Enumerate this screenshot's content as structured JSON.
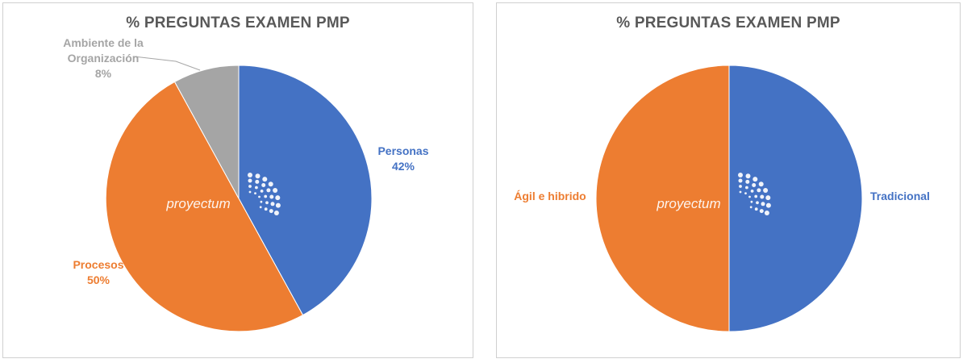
{
  "chart_data": [
    {
      "type": "pie",
      "title": "% PREGUNTAS EXAMEN PMP",
      "watermark": "proyectum",
      "slices": [
        {
          "label_lines": [
            "Personas"
          ],
          "value_label": "42%",
          "value": 42,
          "color": "#4472C4"
        },
        {
          "label_lines": [
            "Procesos"
          ],
          "value_label": "50%",
          "value": 50,
          "color": "#ED7D31"
        },
        {
          "label_lines": [
            "Ambiente de la",
            "Organización"
          ],
          "value_label": "8%",
          "value": 8,
          "color": "#A5A5A5"
        }
      ]
    },
    {
      "type": "pie",
      "title": "% PREGUNTAS EXAMEN PMP",
      "watermark": "proyectum",
      "slices": [
        {
          "label_lines": [
            "Tradicional"
          ],
          "value_label": "",
          "value": 50,
          "color": "#4472C4"
        },
        {
          "label_lines": [
            "Ágil e hibrido"
          ],
          "value_label": "",
          "value": 50,
          "color": "#ED7D31"
        }
      ]
    }
  ]
}
